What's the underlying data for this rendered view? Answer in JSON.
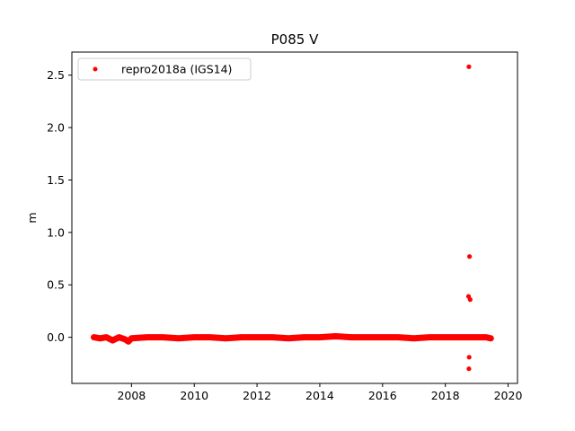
{
  "chart_data": {
    "type": "scatter",
    "title": "P085 V",
    "xlabel": "",
    "ylabel": "m",
    "xlim": [
      2006.1,
      2020.3
    ],
    "ylim": [
      -0.44,
      2.72
    ],
    "x_ticks": [
      2008,
      2010,
      2012,
      2014,
      2016,
      2018,
      2020
    ],
    "x_tick_labels": [
      "2008",
      "2010",
      "2012",
      "2014",
      "2016",
      "2018",
      "2020"
    ],
    "y_ticks": [
      0.0,
      0.5,
      1.0,
      1.5,
      2.0,
      2.5
    ],
    "y_tick_labels": [
      "0.0",
      "0.5",
      "1.0",
      "1.5",
      "2.0",
      "2.5"
    ],
    "grid": false,
    "legend_position": "top-left",
    "series": [
      {
        "name": "repro2018a (IGS14)",
        "color": "#ff0000",
        "marker": "circle",
        "points": [
          {
            "x": 2006.8,
            "y": 0.0
          },
          {
            "x": 2007.0,
            "y": -0.01
          },
          {
            "x": 2007.2,
            "y": 0.0
          },
          {
            "x": 2007.4,
            "y": -0.03
          },
          {
            "x": 2007.6,
            "y": 0.0
          },
          {
            "x": 2007.8,
            "y": -0.02
          },
          {
            "x": 2007.9,
            "y": -0.04
          },
          {
            "x": 2008.0,
            "y": -0.01
          },
          {
            "x": 2008.5,
            "y": 0.0
          },
          {
            "x": 2009.0,
            "y": 0.0
          },
          {
            "x": 2009.5,
            "y": -0.01
          },
          {
            "x": 2010.0,
            "y": 0.0
          },
          {
            "x": 2010.5,
            "y": 0.0
          },
          {
            "x": 2011.0,
            "y": -0.01
          },
          {
            "x": 2011.5,
            "y": 0.0
          },
          {
            "x": 2012.0,
            "y": 0.0
          },
          {
            "x": 2012.5,
            "y": 0.0
          },
          {
            "x": 2013.0,
            "y": -0.01
          },
          {
            "x": 2013.5,
            "y": 0.0
          },
          {
            "x": 2014.0,
            "y": 0.0
          },
          {
            "x": 2014.5,
            "y": 0.01
          },
          {
            "x": 2015.0,
            "y": 0.0
          },
          {
            "x": 2015.5,
            "y": 0.0
          },
          {
            "x": 2016.0,
            "y": 0.0
          },
          {
            "x": 2016.5,
            "y": 0.0
          },
          {
            "x": 2017.0,
            "y": -0.01
          },
          {
            "x": 2017.5,
            "y": 0.0
          },
          {
            "x": 2018.0,
            "y": 0.0
          },
          {
            "x": 2018.5,
            "y": 0.0
          },
          {
            "x": 2018.75,
            "y": 2.58
          },
          {
            "x": 2018.77,
            "y": 0.77
          },
          {
            "x": 2018.74,
            "y": 0.39
          },
          {
            "x": 2018.79,
            "y": 0.36
          },
          {
            "x": 2018.76,
            "y": -0.19
          },
          {
            "x": 2018.75,
            "y": -0.3
          },
          {
            "x": 2019.0,
            "y": 0.0
          },
          {
            "x": 2019.3,
            "y": 0.0
          },
          {
            "x": 2019.45,
            "y": -0.01
          }
        ]
      }
    ]
  }
}
